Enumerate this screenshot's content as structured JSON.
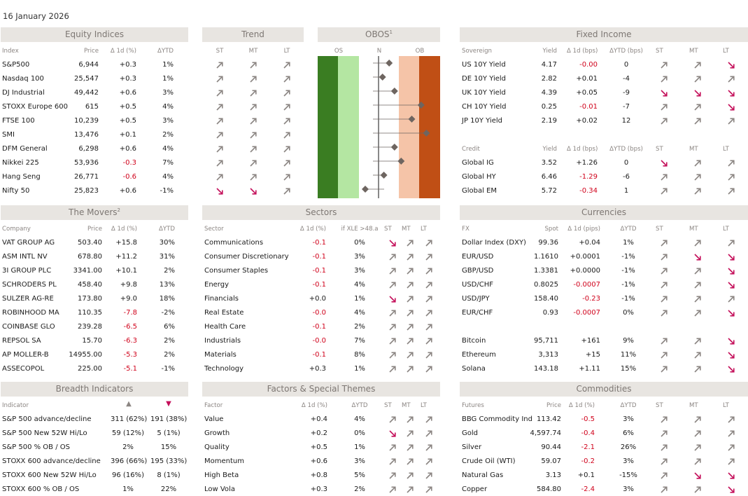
{
  "date": "16 January 2026",
  "colors": {
    "header_bg": "#e8e5e1",
    "header_text": "#7d7773",
    "negative": "#d0021b",
    "up_arrow": "#8b8582",
    "down_arrow": "#c40f5a",
    "os_dark": "#3a7d22",
    "os_light": "#b4e6a2",
    "ob_light": "#f5c4a8",
    "ob_dark": "#c04f15",
    "marker": "#6e6560"
  },
  "equity": {
    "title": "Equity Indices",
    "cols": [
      "Index",
      "Price",
      "Δ 1d (%)",
      "ΔYTD"
    ],
    "rows": [
      [
        "S&P500",
        "6,944",
        "+0.3",
        "1%"
      ],
      [
        "Nasdaq 100",
        "25,547",
        "+0.3",
        "1%"
      ],
      [
        "DJ Industrial",
        "49,442",
        "+0.6",
        "3%"
      ],
      [
        "STOXX Europe 600",
        "615",
        "+0.5",
        "4%"
      ],
      [
        "FTSE 100",
        "10,239",
        "+0.5",
        "3%"
      ],
      [
        "SMI",
        "13,476",
        "+0.1",
        "2%"
      ],
      [
        "DFM General",
        "6,298",
        "+0.6",
        "4%"
      ],
      [
        "Nikkei 225",
        "53,936",
        "-0.3",
        "7%"
      ],
      [
        "Hang Seng",
        "26,771",
        "-0.6",
        "4%"
      ],
      [
        "Nifty 50",
        "25,823",
        "+0.6",
        "-1%"
      ]
    ]
  },
  "trend": {
    "title": "Trend",
    "cols": [
      "ST",
      "MT",
      "LT"
    ],
    "rows": [
      [
        "up",
        "up",
        "up"
      ],
      [
        "up",
        "up",
        "up"
      ],
      [
        "up",
        "up",
        "up"
      ],
      [
        "up",
        "up",
        "up"
      ],
      [
        "up",
        "up",
        "up"
      ],
      [
        "up",
        "up",
        "up"
      ],
      [
        "up",
        "up",
        "up"
      ],
      [
        "up",
        "up",
        "up"
      ],
      [
        "up",
        "up",
        "up"
      ],
      [
        "down",
        "down",
        "up"
      ]
    ]
  },
  "obos": {
    "title": "OBOS",
    "title_sup": "1",
    "labels": [
      "OS",
      "N",
      "OB"
    ],
    "markers": [
      0.4,
      0.15,
      0.6,
      1.6,
      1.25,
      1.8,
      0.6,
      0.85,
      0.2,
      -0.5
    ]
  },
  "fixed_income": {
    "title": "Fixed Income",
    "sov_cols": [
      "Sovereign",
      "Yield",
      "Δ 1d (bps)",
      "ΔYTD (bps)",
      "ST",
      "MT",
      "LT"
    ],
    "sov_rows": [
      [
        "US 10Y Yield",
        "4.17",
        "-0.00",
        "0",
        "up",
        "up",
        "down"
      ],
      [
        "DE 10Y Yield",
        "2.82",
        "+0.01",
        "-4",
        "up",
        "up",
        "up"
      ],
      [
        "UK 10Y Yield",
        "4.39",
        "+0.05",
        "-9",
        "down",
        "down",
        "down"
      ],
      [
        "CH 10Y Yield",
        "0.25",
        "-0.01",
        "-7",
        "up",
        "up",
        "down"
      ],
      [
        "JP 10Y Yield",
        "2.19",
        "+0.02",
        "12",
        "up",
        "up",
        "up"
      ]
    ],
    "cred_cols": [
      "Credit",
      "Yield",
      "Δ 1d (bps)",
      "ΔYTD (bps)",
      "ST",
      "MT",
      "LT"
    ],
    "cred_rows": [
      [
        "Global IG",
        "3.52",
        "+1.26",
        "0",
        "down",
        "up",
        "up"
      ],
      [
        "Global HY",
        "6.46",
        "-1.29",
        "-6",
        "up",
        "up",
        "up"
      ],
      [
        "Global EM",
        "5.72",
        "-0.34",
        "1",
        "up",
        "up",
        "up"
      ]
    ]
  },
  "movers": {
    "title": "The Movers",
    "title_sup": "2",
    "cols": [
      "Company",
      "Price",
      "Δ 1d (%)",
      "ΔYTD"
    ],
    "rows": [
      [
        "VAT GROUP AG",
        "503.40",
        "+15.8",
        "30%"
      ],
      [
        "ASM INTL NV",
        "678.80",
        "+11.2",
        "31%"
      ],
      [
        "3I GROUP PLC",
        "3341.00",
        "+10.1",
        "2%"
      ],
      [
        "SCHRODERS PL",
        "458.40",
        "+9.8",
        "13%"
      ],
      [
        "SULZER AG-RE",
        "173.80",
        "+9.0",
        "18%"
      ],
      [
        "ROBINHOOD MA",
        "110.35",
        "-7.8",
        "-2%"
      ],
      [
        "COINBASE GLO",
        "239.28",
        "-6.5",
        "6%"
      ],
      [
        "REPSOL SA",
        "15.70",
        "-6.3",
        "2%"
      ],
      [
        "AP MOLLER-B",
        "14955.00",
        "-5.3",
        "2%"
      ],
      [
        "ASSECOPOL",
        "225.00",
        "-5.1",
        "-1%"
      ]
    ]
  },
  "sectors": {
    "title": "Sectors",
    "cols": [
      "Sector",
      "Δ 1d (%)",
      "if XLE >48.a",
      "ST",
      "MT",
      "LT"
    ],
    "rows": [
      [
        "Communications",
        "-0.1",
        "0%",
        "down",
        "up",
        "up"
      ],
      [
        "Consumer Discretionary",
        "-0.1",
        "3%",
        "up",
        "up",
        "up"
      ],
      [
        "Consumer Staples",
        "-0.1",
        "3%",
        "up",
        "up",
        "up"
      ],
      [
        "Energy",
        "-0.1",
        "4%",
        "up",
        "up",
        "up"
      ],
      [
        "Financials",
        "+0.0",
        "1%",
        "down",
        "up",
        "up"
      ],
      [
        "Real Estate",
        "-0.0",
        "4%",
        "up",
        "up",
        "up"
      ],
      [
        "Health Care",
        "-0.1",
        "2%",
        "up",
        "up",
        "up"
      ],
      [
        "Industrials",
        "-0.0",
        "7%",
        "up",
        "up",
        "up"
      ],
      [
        "Materials",
        "-0.1",
        "8%",
        "up",
        "up",
        "up"
      ],
      [
        "Technology",
        "+0.3",
        "1%",
        "up",
        "up",
        "up"
      ]
    ]
  },
  "currencies": {
    "title": "Currencies",
    "cols": [
      "FX",
      "Spot",
      "Δ 1d (pips)",
      "ΔYTD",
      "ST",
      "MT",
      "LT"
    ],
    "rows": [
      [
        "Dollar Index (DXY)",
        "99.36",
        "+0.04",
        "1%",
        "up",
        "up",
        "up"
      ],
      [
        "EUR/USD",
        "1.1610",
        "+0.0001",
        "-1%",
        "up",
        "down",
        "down"
      ],
      [
        "GBP/USD",
        "1.3381",
        "+0.0000",
        "-1%",
        "up",
        "up",
        "down"
      ],
      [
        "USD/CHF",
        "0.8025",
        "-0.0007",
        "-1%",
        "up",
        "up",
        "down"
      ],
      [
        "USD/JPY",
        "158.40",
        "-0.23",
        "-1%",
        "up",
        "up",
        "up"
      ],
      [
        "EUR/CHF",
        "0.93",
        "-0.0007",
        "0%",
        "up",
        "up",
        "down"
      ]
    ],
    "crypto_rows": [
      [
        "Bitcoin",
        "95,711",
        "+161",
        "9%",
        "up",
        "up",
        "down"
      ],
      [
        "Ethereum",
        "3,313",
        "+15",
        "11%",
        "up",
        "up",
        "down"
      ],
      [
        "Solana",
        "143.18",
        "+1.11",
        "15%",
        "up",
        "up",
        "down"
      ]
    ]
  },
  "breadth": {
    "title": "Breadth Indicators",
    "cols": [
      "Indicator",
      "▲",
      "▼"
    ],
    "rows": [
      [
        "S&P 500 advance/decline",
        "311 (62%)",
        "191 (38%)"
      ],
      [
        "S&P 500 New 52W Hi/Lo",
        "59 (12%)",
        "5 (1%)"
      ],
      [
        "S&P 500 % OB / OS",
        "2%",
        "15%"
      ],
      [
        "STOXX 600 advance/decline",
        "396 (66%)",
        "195 (33%)"
      ],
      [
        "STOXX 600 New 52W Hi/Lo",
        "96 (16%)",
        "8 (1%)"
      ],
      [
        "STOXX 600 % OB / OS",
        "1%",
        "22%"
      ]
    ]
  },
  "factors": {
    "title": "Factors & Special Themes",
    "cols": [
      "Factor",
      "Δ 1d (%)",
      "ΔYTD",
      "ST",
      "MT",
      "LT"
    ],
    "rows": [
      [
        "Value",
        "+0.4",
        "4%",
        "up",
        "up",
        "up"
      ],
      [
        "Growth",
        "+0.2",
        "0%",
        "down",
        "up",
        "up"
      ],
      [
        "Quality",
        "+0.5",
        "1%",
        "up",
        "up",
        "up"
      ],
      [
        "Momentum",
        "+0.6",
        "3%",
        "up",
        "up",
        "up"
      ],
      [
        "High Beta",
        "+0.8",
        "5%",
        "up",
        "up",
        "up"
      ],
      [
        "Low Vola",
        "+0.3",
        "2%",
        "up",
        "up",
        "up"
      ]
    ]
  },
  "commodities": {
    "title": "Commodities",
    "cols": [
      "Futures",
      "Price",
      "Δ 1d (%)",
      "ΔYTD",
      "ST",
      "MT",
      "LT"
    ],
    "rows": [
      [
        "BBG Commodity Ind",
        "113.42",
        "-0.5",
        "3%",
        "up",
        "up",
        "up"
      ],
      [
        "Gold",
        "4,597.74",
        "-0.4",
        "6%",
        "up",
        "up",
        "up"
      ],
      [
        "Silver",
        "90.44",
        "-2.1",
        "26%",
        "up",
        "up",
        "up"
      ],
      [
        "Crude Oil (WTI)",
        "59.07",
        "-0.2",
        "3%",
        "up",
        "up",
        "up"
      ],
      [
        "Natural Gas",
        "3.13",
        "+0.1",
        "-15%",
        "up",
        "down",
        "down"
      ],
      [
        "Copper",
        "584.80",
        "-2.4",
        "3%",
        "up",
        "up",
        "down"
      ]
    ]
  }
}
